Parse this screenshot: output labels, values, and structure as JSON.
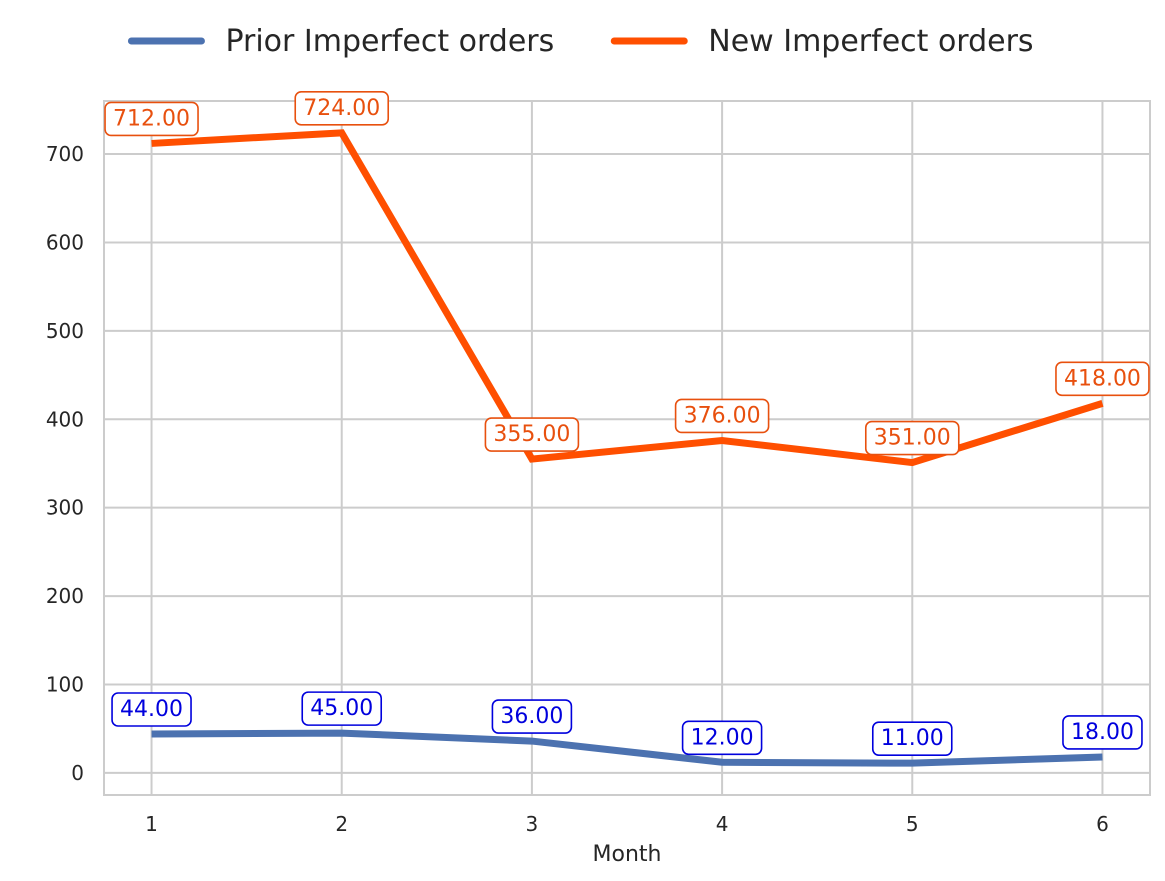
{
  "chart_data": {
    "type": "line",
    "xlabel": "Month",
    "ylabel": "",
    "x": [
      1,
      2,
      3,
      4,
      5,
      6
    ],
    "xticks": [
      "1",
      "2",
      "3",
      "4",
      "5",
      "6"
    ],
    "ylim": [
      -25,
      760
    ],
    "yticks": [
      "0",
      "100",
      "200",
      "300",
      "400",
      "500",
      "600",
      "700"
    ],
    "grid": true,
    "legend_placement": "top-center",
    "series": [
      {
        "name": "Prior Imperfect orders",
        "values": [
          44,
          45,
          36,
          12,
          11,
          18
        ],
        "labels": [
          "44.00",
          "45.00",
          "36.00",
          "12.00",
          "11.00",
          "18.00"
        ],
        "color": "#4C72B0",
        "label_color": "#0000DD"
      },
      {
        "name": "New Imperfect orders",
        "values": [
          712,
          724,
          355,
          376,
          351,
          418
        ],
        "labels": [
          "712.00",
          "724.00",
          "355.00",
          "376.00",
          "351.00",
          "418.00"
        ],
        "color": "#FF4F00",
        "label_color": "#E8500E"
      }
    ]
  }
}
